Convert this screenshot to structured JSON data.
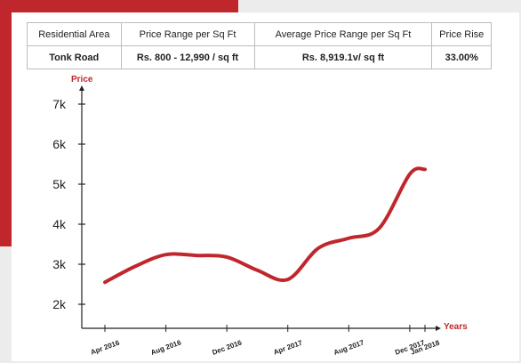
{
  "colors": {
    "accent": "#c0272d",
    "gray_bg": "#ececec",
    "line": "#c0272d",
    "axis": "#222222"
  },
  "table": {
    "headers": [
      "Residential Area",
      "Price Range per Sq Ft",
      "Average Price Range per Sq Ft",
      "Price Rise"
    ],
    "row": [
      "Tonk Road",
      "Rs. 800 - 12,990 / sq ft",
      "Rs. 8,919.1v/ sq ft",
      "33.00%"
    ]
  },
  "chart_data": {
    "type": "line",
    "title": "",
    "xlabel": "Years",
    "ylabel": "Price",
    "categories": [
      "Apr 2016",
      "Aug 2016",
      "Dec 2016",
      "Apr 2017",
      "Aug 2017",
      "Dec 2017",
      "Jan 2018"
    ],
    "y_ticks": [
      "2k",
      "3k",
      "4k",
      "5k",
      "6k",
      "7k"
    ],
    "ylim": [
      2000,
      7000
    ],
    "grid": false,
    "legend": "none",
    "series": [
      {
        "x": [
          "Apr 2016",
          "Jun 2016",
          "Aug 2016",
          "Oct 2016",
          "Dec 2016",
          "Feb 2017",
          "Apr 2017",
          "Jun 2017",
          "Aug 2017",
          "Oct 2017",
          "Dec 2017",
          "Jan 2018"
        ],
        "values": [
          2550,
          2950,
          3240,
          3220,
          3180,
          2850,
          2620,
          3400,
          3650,
          3900,
          5250,
          5370
        ]
      }
    ]
  }
}
